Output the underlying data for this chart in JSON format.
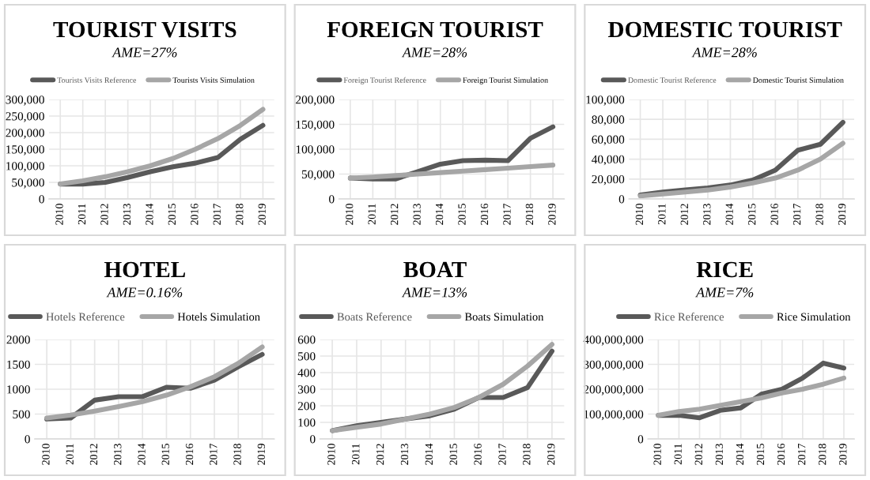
{
  "chart_data": [
    {
      "type": "line",
      "title": "TOURIST VISITS",
      "subtitle": "AME=27%",
      "categories": [
        "2010",
        "2011",
        "2012",
        "2013",
        "2014",
        "2015",
        "2016",
        "2017",
        "2018",
        "2019"
      ],
      "ylim": [
        0,
        300000
      ],
      "yticks": [
        0,
        {
          "value": 50000,
          "label": "50,000"
        },
        {
          "value": 100000,
          "label": "100,000"
        },
        {
          "value": 150000,
          "label": "150,000"
        },
        {
          "value": 200000,
          "label": "200,000"
        },
        {
          "value": 250000,
          "label": "250,000"
        },
        {
          "value": 300000,
          "label": "300,000"
        }
      ],
      "grid": true,
      "legend": "top",
      "series": [
        {
          "name": "Tourists Visits Reference",
          "color": "#595959",
          "values": [
            45000,
            45000,
            50000,
            65000,
            82000,
            97000,
            108000,
            125000,
            180000,
            222000
          ]
        },
        {
          "name": "Tourists Visits Simulation",
          "color": "#a6a6a6",
          "values": [
            45000,
            55000,
            67000,
            82000,
            100000,
            122000,
            150000,
            182000,
            222000,
            270000
          ]
        }
      ]
    },
    {
      "type": "line",
      "title": "FOREIGN TOURIST",
      "subtitle": "AME=28%",
      "categories": [
        "2010",
        "2011",
        "2012",
        "2013",
        "2014",
        "2015",
        "2016",
        "2017",
        "2018",
        "2019"
      ],
      "ylim": [
        0,
        200000
      ],
      "yticks": [
        0,
        {
          "value": 50000,
          "label": "50,000"
        },
        {
          "value": 100000,
          "label": "100,000"
        },
        {
          "value": 150000,
          "label": "150,000"
        },
        {
          "value": 200000,
          "label": "200,000"
        }
      ],
      "grid": true,
      "legend": "top",
      "series": [
        {
          "name": "Foreign Tourist Reference",
          "color": "#595959",
          "values": [
            42000,
            40000,
            40000,
            55000,
            70000,
            77000,
            78000,
            77000,
            122000,
            145000
          ]
        },
        {
          "name": "Foreign Tourist Simulation",
          "color": "#a6a6a6",
          "values": [
            42000,
            44000,
            47000,
            50000,
            53000,
            56000,
            59000,
            62000,
            65000,
            68000
          ]
        }
      ]
    },
    {
      "type": "line",
      "title": "DOMESTIC TOURIST",
      "subtitle": "AME=28%",
      "categories": [
        "2010",
        "2011",
        "2012",
        "2013",
        "2014",
        "2015",
        "2016",
        "2017",
        "2018",
        "2019"
      ],
      "ylim": [
        0,
        100000
      ],
      "yticks": [
        0,
        {
          "value": 20000,
          "label": "20,000"
        },
        {
          "value": 40000,
          "label": "40,000"
        },
        {
          "value": 60000,
          "label": "60,000"
        },
        {
          "value": 80000,
          "label": "80,000"
        },
        {
          "value": 100000,
          "label": "100,000"
        }
      ],
      "grid": true,
      "legend": "top",
      "series": [
        {
          "name": "Domestic Tourist Reference",
          "color": "#595959",
          "values": [
            4000,
            7000,
            9000,
            11000,
            14000,
            19000,
            29000,
            49000,
            55000,
            77000
          ]
        },
        {
          "name": "Domestic Tourist Simulation",
          "color": "#a6a6a6",
          "values": [
            3000,
            5000,
            7000,
            9000,
            12000,
            16000,
            21000,
            29000,
            40000,
            56000
          ]
        }
      ]
    },
    {
      "type": "line",
      "title": "HOTEL",
      "subtitle": "AME=0.16%",
      "categories": [
        "2010",
        "2011",
        "2012",
        "2013",
        "2014",
        "2015",
        "2016",
        "2017",
        "2018",
        "2019"
      ],
      "ylim": [
        0,
        2000
      ],
      "yticks": [
        0,
        500,
        1000,
        1500,
        2000
      ],
      "grid": true,
      "legend": "top",
      "series": [
        {
          "name": "Hotels Reference",
          "color": "#595959",
          "values": [
            400,
            420,
            780,
            850,
            850,
            1040,
            1020,
            1180,
            1450,
            1700
          ]
        },
        {
          "name": "Hotels Simulation",
          "color": "#a6a6a6",
          "values": [
            420,
            480,
            560,
            650,
            750,
            880,
            1050,
            1250,
            1520,
            1850
          ]
        }
      ]
    },
    {
      "type": "line",
      "title": "BOAT",
      "subtitle": "AME=13%",
      "categories": [
        "2010",
        "2011",
        "2012",
        "2013",
        "2014",
        "2015",
        "2016",
        "2017",
        "2018",
        "2019"
      ],
      "ylim": [
        0,
        600
      ],
      "yticks": [
        0,
        100,
        200,
        300,
        400,
        500,
        600
      ],
      "grid": true,
      "legend": "top",
      "series": [
        {
          "name": "Boats Reference",
          "color": "#595959",
          "values": [
            50,
            80,
            100,
            120,
            140,
            180,
            250,
            250,
            310,
            530
          ]
        },
        {
          "name": "Boats Simulation",
          "color": "#a6a6a6",
          "values": [
            50,
            70,
            90,
            120,
            150,
            190,
            250,
            330,
            440,
            570
          ]
        }
      ]
    },
    {
      "type": "line",
      "title": "RICE",
      "subtitle": "AME=7%",
      "categories": [
        "2010",
        "2011",
        "2012",
        "2013",
        "2014",
        "2015",
        "2016",
        "2017",
        "2018",
        "2019"
      ],
      "ylim": [
        0,
        400000000
      ],
      "yticks": [
        0,
        {
          "value": 100000000,
          "label": "100,000,000"
        },
        {
          "value": 200000000,
          "label": "200,000,000"
        },
        {
          "value": 300000000,
          "label": "300,000,000"
        },
        {
          "value": 400000000,
          "label": "400,000,000"
        }
      ],
      "grid": true,
      "legend": "top",
      "series": [
        {
          "name": "Rice Reference",
          "color": "#595959",
          "values": [
            95000000,
            95000000,
            85000000,
            115000000,
            125000000,
            180000000,
            200000000,
            245000000,
            305000000,
            285000000
          ]
        },
        {
          "name": "Rice Simulation",
          "color": "#a6a6a6",
          "values": [
            95000000,
            110000000,
            120000000,
            135000000,
            150000000,
            165000000,
            185000000,
            200000000,
            220000000,
            245000000
          ]
        }
      ]
    }
  ]
}
